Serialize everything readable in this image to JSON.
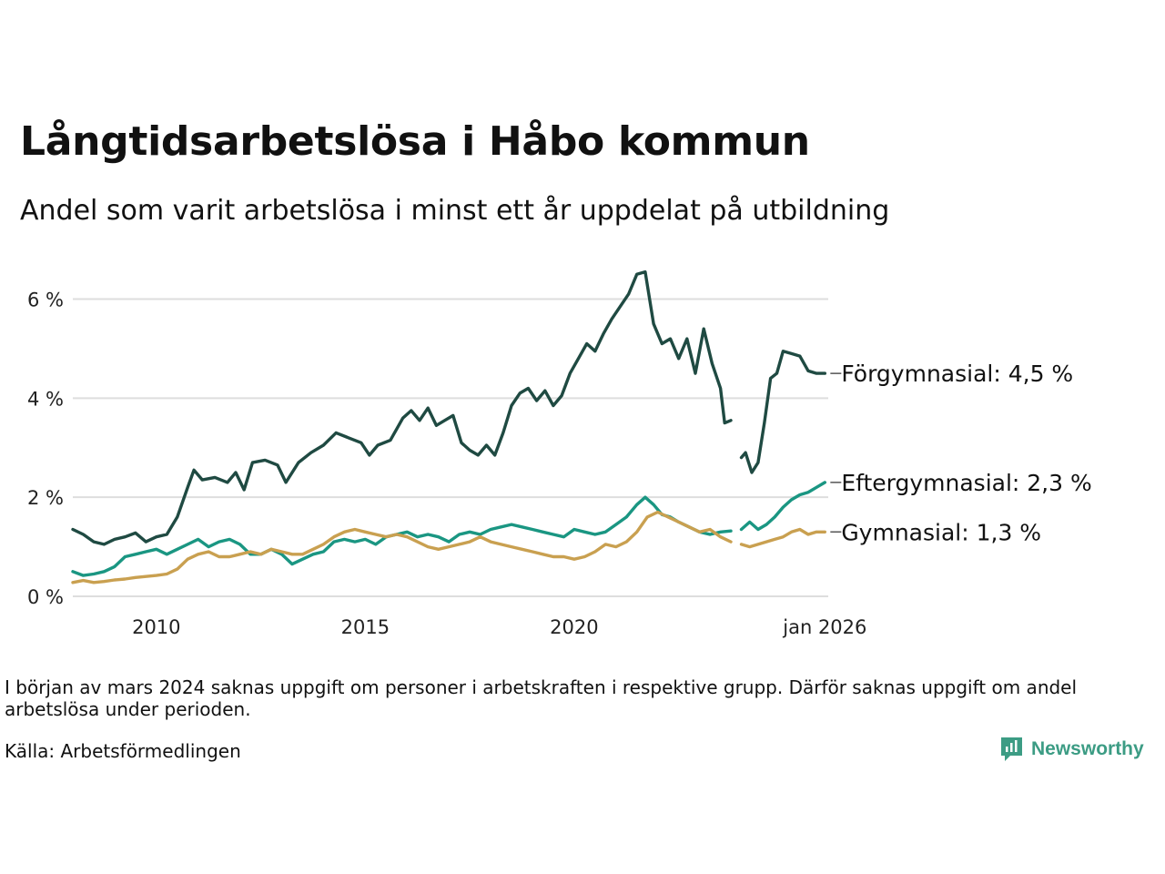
{
  "chart_data": {
    "type": "line",
    "title": "Långtidsarbetslösa i Håbo kommun",
    "subtitle": "Andel som varit arbetslösa i minst ett år uppdelat på utbildning",
    "x_range": [
      2008.0,
      2026.08
    ],
    "ylim": [
      0,
      6.8
    ],
    "y_ticks": [
      0,
      2,
      4,
      6
    ],
    "y_tick_labels": [
      "0 %",
      "2 %",
      "4 %",
      "6 %"
    ],
    "x_ticks": [
      2010,
      2015,
      2020,
      2026
    ],
    "x_tick_labels": [
      "2010",
      "2015",
      "2020",
      "jan 2026"
    ],
    "grid": true,
    "gap": [
      2023.75,
      2024.0
    ],
    "series": [
      {
        "name": "Förgymnasial",
        "label": "Förgymnasial: 4,5 %",
        "color": "#1f4a42",
        "points": [
          [
            2008.0,
            1.35
          ],
          [
            2008.25,
            1.25
          ],
          [
            2008.5,
            1.1
          ],
          [
            2008.75,
            1.05
          ],
          [
            2009.0,
            1.15
          ],
          [
            2009.25,
            1.2
          ],
          [
            2009.5,
            1.28
          ],
          [
            2009.75,
            1.1
          ],
          [
            2010.0,
            1.2
          ],
          [
            2010.25,
            1.25
          ],
          [
            2010.5,
            1.6
          ],
          [
            2010.75,
            2.2
          ],
          [
            2010.9,
            2.55
          ],
          [
            2011.1,
            2.35
          ],
          [
            2011.4,
            2.4
          ],
          [
            2011.7,
            2.3
          ],
          [
            2011.9,
            2.5
          ],
          [
            2012.1,
            2.15
          ],
          [
            2012.3,
            2.7
          ],
          [
            2012.6,
            2.75
          ],
          [
            2012.9,
            2.65
          ],
          [
            2013.1,
            2.3
          ],
          [
            2013.4,
            2.7
          ],
          [
            2013.7,
            2.9
          ],
          [
            2014.0,
            3.05
          ],
          [
            2014.3,
            3.3
          ],
          [
            2014.6,
            3.2
          ],
          [
            2014.9,
            3.1
          ],
          [
            2015.1,
            2.85
          ],
          [
            2015.3,
            3.05
          ],
          [
            2015.6,
            3.15
          ],
          [
            2015.9,
            3.6
          ],
          [
            2016.1,
            3.75
          ],
          [
            2016.3,
            3.55
          ],
          [
            2016.5,
            3.8
          ],
          [
            2016.7,
            3.45
          ],
          [
            2016.9,
            3.55
          ],
          [
            2017.1,
            3.65
          ],
          [
            2017.3,
            3.1
          ],
          [
            2017.5,
            2.95
          ],
          [
            2017.7,
            2.85
          ],
          [
            2017.9,
            3.05
          ],
          [
            2018.1,
            2.85
          ],
          [
            2018.3,
            3.3
          ],
          [
            2018.5,
            3.85
          ],
          [
            2018.7,
            4.1
          ],
          [
            2018.9,
            4.2
          ],
          [
            2019.1,
            3.95
          ],
          [
            2019.3,
            4.15
          ],
          [
            2019.5,
            3.85
          ],
          [
            2019.7,
            4.05
          ],
          [
            2019.9,
            4.5
          ],
          [
            2020.1,
            4.8
          ],
          [
            2020.3,
            5.1
          ],
          [
            2020.5,
            4.95
          ],
          [
            2020.7,
            5.3
          ],
          [
            2020.9,
            5.6
          ],
          [
            2021.1,
            5.85
          ],
          [
            2021.3,
            6.1
          ],
          [
            2021.5,
            6.5
          ],
          [
            2021.7,
            6.55
          ],
          [
            2021.9,
            5.5
          ],
          [
            2022.1,
            5.1
          ],
          [
            2022.3,
            5.2
          ],
          [
            2022.5,
            4.8
          ],
          [
            2022.7,
            5.2
          ],
          [
            2022.9,
            4.5
          ],
          [
            2023.1,
            5.4
          ],
          [
            2023.3,
            4.7
          ],
          [
            2023.5,
            4.2
          ],
          [
            2023.6,
            3.5
          ],
          [
            2023.75,
            3.55
          ],
          null,
          [
            2024.0,
            2.8
          ],
          [
            2024.1,
            2.9
          ],
          [
            2024.25,
            2.5
          ],
          [
            2024.4,
            2.7
          ],
          [
            2024.55,
            3.5
          ],
          [
            2024.7,
            4.4
          ],
          [
            2024.85,
            4.5
          ],
          [
            2025.0,
            4.95
          ],
          [
            2025.2,
            4.9
          ],
          [
            2025.4,
            4.85
          ],
          [
            2025.6,
            4.55
          ],
          [
            2025.8,
            4.5
          ],
          [
            2026.0,
            4.5
          ]
        ]
      },
      {
        "name": "Eftergymnasial",
        "label": "Eftergymnasial: 2,3 %",
        "color": "#1a9682",
        "points": [
          [
            2008.0,
            0.5
          ],
          [
            2008.25,
            0.42
          ],
          [
            2008.5,
            0.45
          ],
          [
            2008.75,
            0.5
          ],
          [
            2009.0,
            0.6
          ],
          [
            2009.25,
            0.8
          ],
          [
            2009.5,
            0.85
          ],
          [
            2009.75,
            0.9
          ],
          [
            2010.0,
            0.95
          ],
          [
            2010.25,
            0.85
          ],
          [
            2010.5,
            0.95
          ],
          [
            2010.75,
            1.05
          ],
          [
            2011.0,
            1.15
          ],
          [
            2011.25,
            1.0
          ],
          [
            2011.5,
            1.1
          ],
          [
            2011.75,
            1.15
          ],
          [
            2012.0,
            1.05
          ],
          [
            2012.25,
            0.85
          ],
          [
            2012.5,
            0.85
          ],
          [
            2012.75,
            0.95
          ],
          [
            2013.0,
            0.85
          ],
          [
            2013.25,
            0.65
          ],
          [
            2013.5,
            0.75
          ],
          [
            2013.75,
            0.85
          ],
          [
            2014.0,
            0.9
          ],
          [
            2014.25,
            1.1
          ],
          [
            2014.5,
            1.15
          ],
          [
            2014.75,
            1.1
          ],
          [
            2015.0,
            1.15
          ],
          [
            2015.25,
            1.05
          ],
          [
            2015.5,
            1.2
          ],
          [
            2015.75,
            1.25
          ],
          [
            2016.0,
            1.3
          ],
          [
            2016.25,
            1.2
          ],
          [
            2016.5,
            1.25
          ],
          [
            2016.75,
            1.2
          ],
          [
            2017.0,
            1.1
          ],
          [
            2017.25,
            1.25
          ],
          [
            2017.5,
            1.3
          ],
          [
            2017.75,
            1.25
          ],
          [
            2018.0,
            1.35
          ],
          [
            2018.25,
            1.4
          ],
          [
            2018.5,
            1.45
          ],
          [
            2018.75,
            1.4
          ],
          [
            2019.0,
            1.35
          ],
          [
            2019.25,
            1.3
          ],
          [
            2019.5,
            1.25
          ],
          [
            2019.75,
            1.2
          ],
          [
            2020.0,
            1.35
          ],
          [
            2020.25,
            1.3
          ],
          [
            2020.5,
            1.25
          ],
          [
            2020.75,
            1.3
          ],
          [
            2021.0,
            1.45
          ],
          [
            2021.25,
            1.6
          ],
          [
            2021.5,
            1.85
          ],
          [
            2021.7,
            2.0
          ],
          [
            2021.9,
            1.85
          ],
          [
            2022.1,
            1.65
          ],
          [
            2022.3,
            1.6
          ],
          [
            2022.5,
            1.5
          ],
          [
            2022.75,
            1.4
          ],
          [
            2023.0,
            1.3
          ],
          [
            2023.25,
            1.25
          ],
          [
            2023.5,
            1.3
          ],
          [
            2023.75,
            1.32
          ],
          null,
          [
            2024.0,
            1.35
          ],
          [
            2024.2,
            1.5
          ],
          [
            2024.4,
            1.35
          ],
          [
            2024.6,
            1.45
          ],
          [
            2024.8,
            1.6
          ],
          [
            2025.0,
            1.8
          ],
          [
            2025.2,
            1.95
          ],
          [
            2025.4,
            2.05
          ],
          [
            2025.6,
            2.1
          ],
          [
            2025.8,
            2.2
          ],
          [
            2026.0,
            2.3
          ]
        ]
      },
      {
        "name": "Gymnasial",
        "label": "Gymnasial: 1,3 %",
        "color": "#c9a050",
        "points": [
          [
            2008.0,
            0.28
          ],
          [
            2008.25,
            0.32
          ],
          [
            2008.5,
            0.28
          ],
          [
            2008.75,
            0.3
          ],
          [
            2009.0,
            0.33
          ],
          [
            2009.25,
            0.35
          ],
          [
            2009.5,
            0.38
          ],
          [
            2009.75,
            0.4
          ],
          [
            2010.0,
            0.42
          ],
          [
            2010.25,
            0.45
          ],
          [
            2010.5,
            0.55
          ],
          [
            2010.75,
            0.75
          ],
          [
            2011.0,
            0.85
          ],
          [
            2011.25,
            0.9
          ],
          [
            2011.5,
            0.8
          ],
          [
            2011.75,
            0.8
          ],
          [
            2012.0,
            0.85
          ],
          [
            2012.25,
            0.9
          ],
          [
            2012.5,
            0.85
          ],
          [
            2012.75,
            0.95
          ],
          [
            2013.0,
            0.9
          ],
          [
            2013.25,
            0.85
          ],
          [
            2013.5,
            0.85
          ],
          [
            2013.75,
            0.95
          ],
          [
            2014.0,
            1.05
          ],
          [
            2014.25,
            1.2
          ],
          [
            2014.5,
            1.3
          ],
          [
            2014.75,
            1.35
          ],
          [
            2015.0,
            1.3
          ],
          [
            2015.25,
            1.25
          ],
          [
            2015.5,
            1.2
          ],
          [
            2015.75,
            1.25
          ],
          [
            2016.0,
            1.2
          ],
          [
            2016.25,
            1.1
          ],
          [
            2016.5,
            1.0
          ],
          [
            2016.75,
            0.95
          ],
          [
            2017.0,
            1.0
          ],
          [
            2017.25,
            1.05
          ],
          [
            2017.5,
            1.1
          ],
          [
            2017.75,
            1.2
          ],
          [
            2018.0,
            1.1
          ],
          [
            2018.25,
            1.05
          ],
          [
            2018.5,
            1.0
          ],
          [
            2018.75,
            0.95
          ],
          [
            2019.0,
            0.9
          ],
          [
            2019.25,
            0.85
          ],
          [
            2019.5,
            0.8
          ],
          [
            2019.75,
            0.8
          ],
          [
            2020.0,
            0.75
          ],
          [
            2020.25,
            0.8
          ],
          [
            2020.5,
            0.9
          ],
          [
            2020.75,
            1.05
          ],
          [
            2021.0,
            1.0
          ],
          [
            2021.25,
            1.1
          ],
          [
            2021.5,
            1.3
          ],
          [
            2021.75,
            1.6
          ],
          [
            2022.0,
            1.7
          ],
          [
            2022.25,
            1.6
          ],
          [
            2022.5,
            1.5
          ],
          [
            2022.75,
            1.4
          ],
          [
            2023.0,
            1.3
          ],
          [
            2023.25,
            1.35
          ],
          [
            2023.5,
            1.2
          ],
          [
            2023.75,
            1.1
          ],
          null,
          [
            2024.0,
            1.05
          ],
          [
            2024.2,
            1.0
          ],
          [
            2024.4,
            1.05
          ],
          [
            2024.6,
            1.1
          ],
          [
            2024.8,
            1.15
          ],
          [
            2025.0,
            1.2
          ],
          [
            2025.2,
            1.3
          ],
          [
            2025.4,
            1.35
          ],
          [
            2025.6,
            1.25
          ],
          [
            2025.8,
            1.3
          ],
          [
            2026.0,
            1.3
          ]
        ]
      }
    ]
  },
  "footer": {
    "note": "I början av mars 2024 saknas uppgift om personer i arbetskraften i respektive grupp. Därför saknas uppgift om andel arbetslösa under perioden.",
    "source": "Källa: Arbetsförmedlingen",
    "logo_text": "Newsworthy",
    "logo_color": "#3c9c84"
  }
}
